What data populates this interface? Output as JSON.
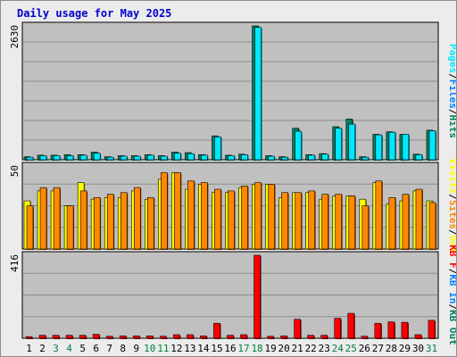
{
  "chart_title": "Daily usage for May 2025",
  "colors": {
    "background": "#c0c0c0",
    "frame": "#ececec",
    "grid": "#8c8c8c",
    "hits": "#008060",
    "files": "#0080ff",
    "pages": "#00e8ff",
    "visits": "#ffff00",
    "sites": "#ff8800",
    "kbytes": "#ff0000",
    "weekend_label": "#008040",
    "title": "#0000cc"
  },
  "chart_data": [
    {
      "type": "bar",
      "panel": "hits-files-pages",
      "ymax_label": "2630",
      "ylim": [
        0,
        2630
      ],
      "legend": [
        "Pages",
        "Files",
        "Hits"
      ],
      "legend_separator": "/",
      "categories": [
        "1",
        "2",
        "3",
        "4",
        "5",
        "6",
        "7",
        "8",
        "9",
        "10",
        "11",
        "12",
        "13",
        "14",
        "15",
        "16",
        "17",
        "18",
        "19",
        "20",
        "21",
        "22",
        "23",
        "24",
        "25",
        "26",
        "27",
        "28",
        "29",
        "30",
        "31"
      ],
      "weekend_days": [
        "3",
        "4",
        "10",
        "11",
        "17",
        "18",
        "24",
        "25",
        "31"
      ],
      "series": [
        {
          "name": "Hits",
          "values": [
            60,
            90,
            90,
            100,
            100,
            150,
            60,
            80,
            80,
            100,
            80,
            150,
            140,
            100,
            470,
            90,
            110,
            2630,
            80,
            60,
            620,
            100,
            120,
            650,
            800,
            60,
            500,
            550,
            500,
            110,
            580
          ]
        },
        {
          "name": "Pages",
          "values": [
            50,
            80,
            80,
            80,
            90,
            130,
            50,
            70,
            70,
            90,
            70,
            130,
            120,
            90,
            450,
            80,
            100,
            2600,
            70,
            50,
            560,
            90,
            110,
            620,
            700,
            50,
            490,
            540,
            500,
            100,
            570
          ]
        }
      ]
    },
    {
      "type": "bar",
      "panel": "visits-sites",
      "ymax_label": "50",
      "ylim": [
        0,
        50
      ],
      "legend": [
        "Visits",
        "Sites",
        "Out"
      ],
      "legend_separator": "/",
      "categories": [
        "1",
        "2",
        "3",
        "4",
        "5",
        "6",
        "7",
        "8",
        "9",
        "10",
        "11",
        "12",
        "13",
        "14",
        "15",
        "16",
        "17",
        "18",
        "19",
        "20",
        "21",
        "22",
        "23",
        "24",
        "25",
        "26",
        "27",
        "28",
        "29",
        "30",
        "31"
      ],
      "series": [
        {
          "name": "Visits",
          "values": [
            29,
            35,
            35,
            26,
            40,
            30,
            31,
            31,
            35,
            30,
            42,
            46,
            36,
            39,
            34,
            34,
            37,
            39,
            39,
            31,
            34,
            34,
            30,
            32,
            32,
            30,
            40,
            27,
            29,
            35,
            29
          ]
        },
        {
          "name": "Sites",
          "values": [
            26,
            37,
            37,
            26,
            35,
            31,
            33,
            34,
            37,
            31,
            46,
            46,
            41,
            40,
            36,
            35,
            38,
            40,
            39,
            34,
            34,
            35,
            33,
            33,
            32,
            26,
            41,
            31,
            33,
            36,
            28
          ]
        }
      ]
    },
    {
      "type": "bar",
      "panel": "kbytes",
      "ymax_label": "416",
      "ylim": [
        0,
        416
      ],
      "legend": [
        "KB F",
        "KB In",
        "KB Out"
      ],
      "legend_separator": "/",
      "categories": [
        "1",
        "2",
        "3",
        "4",
        "5",
        "6",
        "7",
        "8",
        "9",
        "10",
        "11",
        "12",
        "13",
        "14",
        "15",
        "16",
        "17",
        "18",
        "19",
        "20",
        "21",
        "22",
        "23",
        "24",
        "25",
        "26",
        "27",
        "28",
        "29",
        "30",
        "31"
      ],
      "series": [
        {
          "name": "KB F",
          "values": [
            8,
            15,
            15,
            15,
            15,
            20,
            10,
            12,
            12,
            12,
            10,
            18,
            18,
            12,
            75,
            15,
            18,
            416,
            10,
            12,
            95,
            15,
            15,
            100,
            125,
            10,
            75,
            82,
            80,
            18,
            90
          ]
        }
      ]
    }
  ]
}
